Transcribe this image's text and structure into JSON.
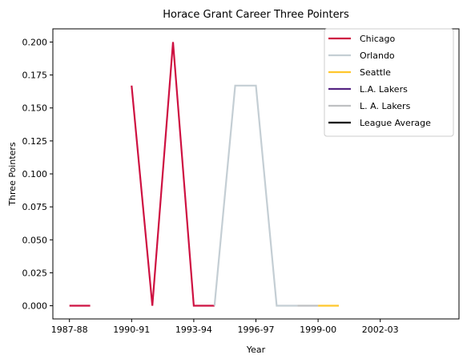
{
  "chart_data": {
    "type": "line",
    "title": "Horace Grant Career Three Pointers",
    "xlabel": "Year",
    "ylabel": "Three Pointers",
    "x_ticks": [
      "1987-88",
      "1990-91",
      "1993-94",
      "1996-97",
      "1999-00",
      "2002-03"
    ],
    "y_ticks": [
      "0.000",
      "0.025",
      "0.050",
      "0.075",
      "0.100",
      "0.125",
      "0.150",
      "0.175",
      "0.200"
    ],
    "xlim": [
      1986.2,
      2005.8
    ],
    "ylim": [
      -0.01,
      0.21
    ],
    "grid": false,
    "legend_position": "top-right",
    "series": [
      {
        "name": "Chicago",
        "color": "#CE1141",
        "segments": [
          [
            [
              1987,
              0.0
            ],
            [
              1988,
              0.0
            ]
          ],
          [
            [
              1990,
              0.167
            ],
            [
              1991,
              0.0
            ],
            [
              1992,
              0.2
            ],
            [
              1993,
              0.0
            ],
            [
              1994,
              0.0
            ]
          ]
        ]
      },
      {
        "name": "Orlando",
        "color": "#C4CED4",
        "segments": [
          [
            [
              1994,
              0.0
            ],
            [
              1995,
              0.167
            ],
            [
              1996,
              0.167
            ],
            [
              1997,
              0.0
            ],
            [
              1998,
              0.0
            ]
          ]
        ]
      },
      {
        "name": "Seattle",
        "color": "#FFC72C",
        "segments": [
          [
            [
              1999,
              0.0
            ],
            [
              2000,
              0.0
            ]
          ]
        ]
      },
      {
        "name": "L.A. Lakers",
        "color": "#552583",
        "segments": []
      },
      {
        "name": "L. A. Lakers",
        "color": "#BEC0C2",
        "segments": [
          [
            [
              1998,
              0.0
            ],
            [
              1999,
              0.0
            ]
          ]
        ]
      },
      {
        "name": "League Average",
        "color": "#000000",
        "segments": []
      }
    ]
  }
}
